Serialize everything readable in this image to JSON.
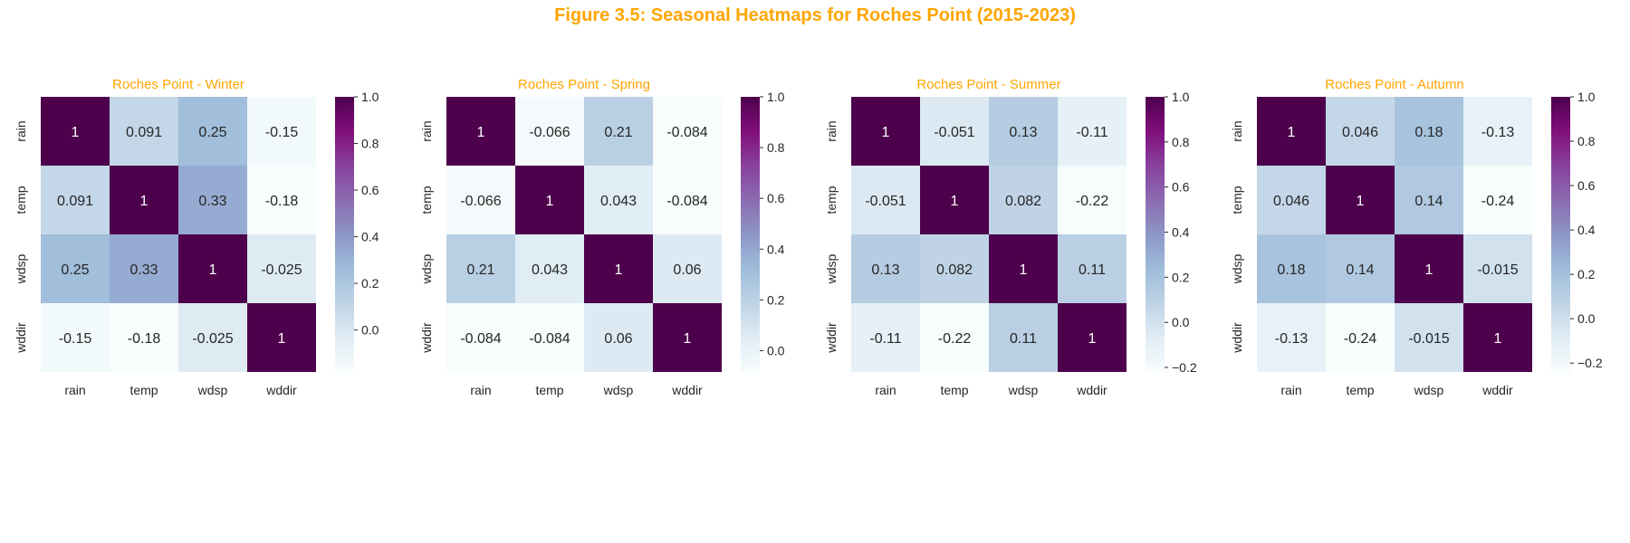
{
  "figure": {
    "title": "Figure 3.5: Seasonal Heatmaps for Roches Point (2015-2023)",
    "title_color": "#FFA500"
  },
  "colormap": {
    "name": "BuPu",
    "stops": [
      "#f7fcfd",
      "#e0ecf4",
      "#bfd3e6",
      "#9ebcda",
      "#8c96c6",
      "#8c6bb1",
      "#88419d",
      "#810f7c",
      "#4d004b"
    ],
    "label_color_light_bg": "#262626",
    "label_color_dark_bg": "#ffffff"
  },
  "chart_data": [
    {
      "type": "heatmap",
      "title": "Roches Point - Winter",
      "title_color": "#FFA500",
      "x_categories": [
        "rain",
        "temp",
        "wdsp",
        "wddir"
      ],
      "y_categories": [
        "rain",
        "temp",
        "wdsp",
        "wddir"
      ],
      "values": [
        [
          1,
          0.091,
          0.25,
          -0.15
        ],
        [
          0.091,
          1,
          0.33,
          -0.18
        ],
        [
          0.25,
          0.33,
          1,
          -0.025
        ],
        [
          -0.15,
          -0.18,
          -0.025,
          1
        ]
      ],
      "labels": [
        [
          "1",
          "0.091",
          "0.25",
          "-0.15"
        ],
        [
          "0.091",
          "1",
          "0.33",
          "-0.18"
        ],
        [
          "0.25",
          "0.33",
          "1",
          "-0.025"
        ],
        [
          "-0.15",
          "-0.18",
          "-0.025",
          "1"
        ]
      ],
      "vmin": -0.18,
      "vmax": 1,
      "colorbar_ticks": [
        0.0,
        0.2,
        0.4,
        0.6,
        0.8,
        1.0
      ],
      "colorbar_tick_labels": [
        "0.0",
        "0.2",
        "0.4",
        "0.6",
        "0.8",
        "1.0"
      ]
    },
    {
      "type": "heatmap",
      "title": "Roches Point - Spring",
      "title_color": "#FFA500",
      "x_categories": [
        "rain",
        "temp",
        "wdsp",
        "wddir"
      ],
      "y_categories": [
        "rain",
        "temp",
        "wdsp",
        "wddir"
      ],
      "values": [
        [
          1,
          -0.066,
          0.21,
          -0.084
        ],
        [
          -0.066,
          1,
          0.043,
          -0.084
        ],
        [
          0.21,
          0.043,
          1,
          0.06
        ],
        [
          -0.084,
          -0.084,
          0.06,
          1
        ]
      ],
      "labels": [
        [
          "1",
          "-0.066",
          "0.21",
          "-0.084"
        ],
        [
          "-0.066",
          "1",
          "0.043",
          "-0.084"
        ],
        [
          "0.21",
          "0.043",
          "1",
          "0.06"
        ],
        [
          "-0.084",
          "-0.084",
          "0.06",
          "1"
        ]
      ],
      "vmin": -0.084,
      "vmax": 1,
      "colorbar_ticks": [
        0.0,
        0.2,
        0.4,
        0.6,
        0.8,
        1.0
      ],
      "colorbar_tick_labels": [
        "0.0",
        "0.2",
        "0.4",
        "0.6",
        "0.8",
        "1.0"
      ]
    },
    {
      "type": "heatmap",
      "title": "Roches Point - Summer",
      "title_color": "#FFA500",
      "x_categories": [
        "rain",
        "temp",
        "wdsp",
        "wddir"
      ],
      "y_categories": [
        "rain",
        "temp",
        "wdsp",
        "wddir"
      ],
      "values": [
        [
          1,
          -0.051,
          0.13,
          -0.11
        ],
        [
          -0.051,
          1,
          0.082,
          -0.22
        ],
        [
          0.13,
          0.082,
          1,
          0.11
        ],
        [
          -0.11,
          -0.22,
          0.11,
          1
        ]
      ],
      "labels": [
        [
          "1",
          "-0.051",
          "0.13",
          "-0.11"
        ],
        [
          "-0.051",
          "1",
          "0.082",
          "-0.22"
        ],
        [
          "0.13",
          "0.082",
          "1",
          "0.11"
        ],
        [
          "-0.11",
          "-0.22",
          "0.11",
          "1"
        ]
      ],
      "vmin": -0.22,
      "vmax": 1,
      "colorbar_ticks": [
        -0.2,
        0.0,
        0.2,
        0.4,
        0.6,
        0.8,
        1.0
      ],
      "colorbar_tick_labels": [
        "−0.2",
        "0.0",
        "0.2",
        "0.4",
        "0.6",
        "0.8",
        "1.0"
      ]
    },
    {
      "type": "heatmap",
      "title": "Roches Point - Autumn",
      "title_color": "#FFA500",
      "x_categories": [
        "rain",
        "temp",
        "wdsp",
        "wddir"
      ],
      "y_categories": [
        "rain",
        "temp",
        "wdsp",
        "wddir"
      ],
      "values": [
        [
          1,
          0.046,
          0.18,
          -0.13
        ],
        [
          0.046,
          1,
          0.14,
          -0.24
        ],
        [
          0.18,
          0.14,
          1,
          -0.015
        ],
        [
          -0.13,
          -0.24,
          -0.015,
          1
        ]
      ],
      "labels": [
        [
          "1",
          "0.046",
          "0.18",
          "-0.13"
        ],
        [
          "0.046",
          "1",
          "0.14",
          "-0.24"
        ],
        [
          "0.18",
          "0.14",
          "1",
          "-0.015"
        ],
        [
          "-0.13",
          "-0.24",
          "-0.015",
          "1"
        ]
      ],
      "vmin": -0.24,
      "vmax": 1,
      "colorbar_ticks": [
        -0.2,
        0.0,
        0.2,
        0.4,
        0.6,
        0.8,
        1.0
      ],
      "colorbar_tick_labels": [
        "−0.2",
        "0.0",
        "0.2",
        "0.4",
        "0.6",
        "0.8",
        "1.0"
      ]
    }
  ]
}
